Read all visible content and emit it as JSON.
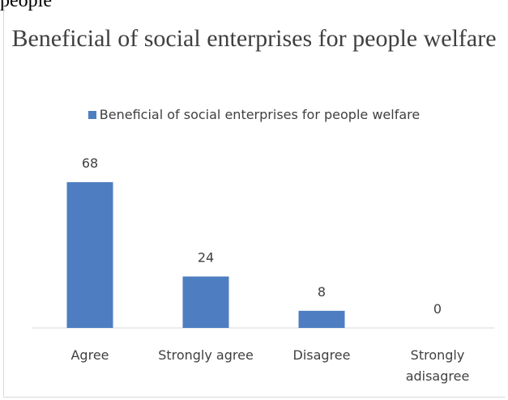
{
  "above_text": "people",
  "chart_data": {
    "type": "bar",
    "title": "Beneficial of social enterprises for people welfare",
    "categories": [
      "Agree",
      "Strongly agree",
      "Disagree",
      "Strongly adisagree"
    ],
    "series": [
      {
        "name": "Beneficial of social enterprises for people welfare",
        "values": [
          68,
          24,
          8,
          0
        ]
      }
    ],
    "ylim": [
      0,
      68
    ],
    "bar_color": "#4e7ec1",
    "grid": false,
    "legend_position": "top"
  }
}
